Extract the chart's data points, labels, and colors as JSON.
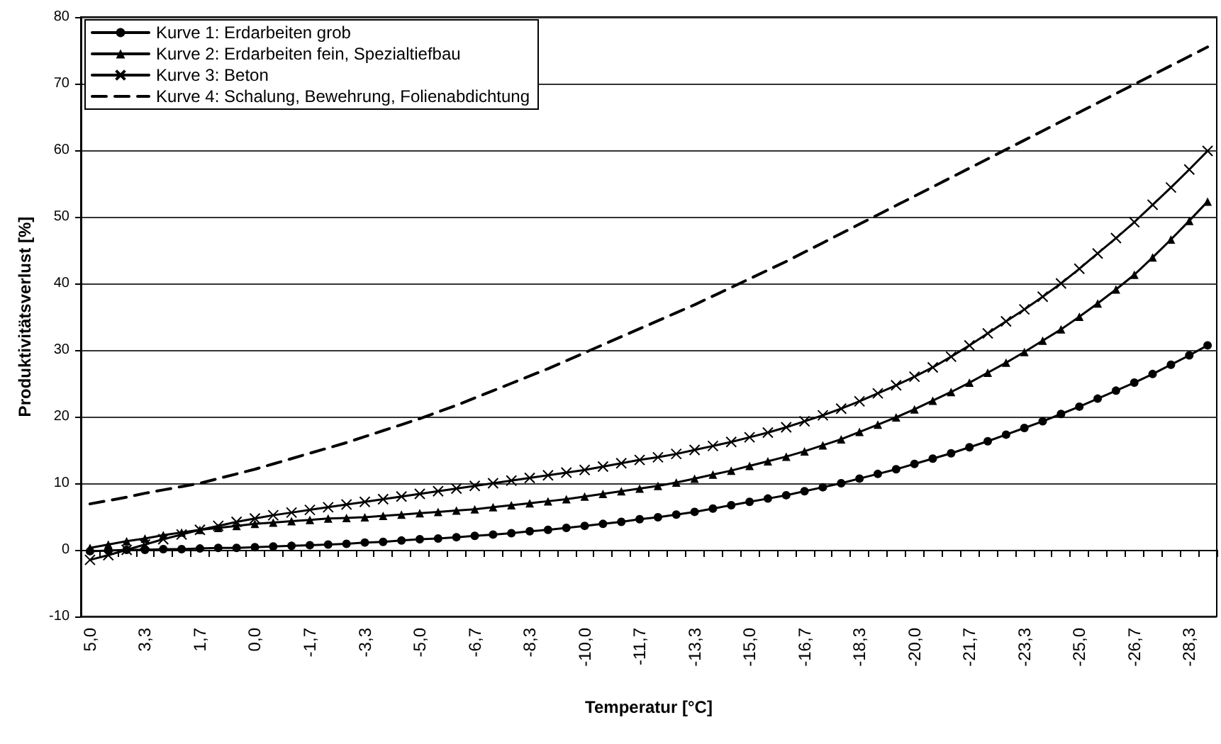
{
  "chart_data": {
    "type": "line",
    "xlabel": "Temperatur [°C]",
    "ylabel": "Produktivitätsverlust [%]",
    "categories": [
      "5,0",
      null,
      null,
      "3,3",
      null,
      null,
      "1,7",
      null,
      null,
      "0,0",
      null,
      null,
      "-1,7",
      null,
      null,
      "-3,3",
      null,
      null,
      "-5,0",
      null,
      null,
      "-6,7",
      null,
      null,
      "-8,3",
      null,
      null,
      "-10,0",
      null,
      null,
      "-11,7",
      null,
      null,
      "-13,3",
      null,
      null,
      "-15,0",
      null,
      null,
      "-16,7",
      null,
      null,
      "-18,3",
      null,
      null,
      "-20,0",
      null,
      null,
      "-21,7",
      null,
      null,
      "-23,3",
      null,
      null,
      "-25,0",
      null,
      null,
      "-26,7",
      null,
      null,
      "-28,3",
      null
    ],
    "series": [
      {
        "name": "Kurve 1: Erdarbeiten grob",
        "color": "#000000",
        "marker": "circle",
        "line_style": "solid",
        "values": [
          -0.2,
          -0.1,
          0,
          0,
          0.1,
          0.1,
          0.2,
          0.3,
          0.3,
          0.4,
          0.5,
          0.6,
          0.7,
          0.8,
          0.9,
          1.1,
          1.2,
          1.4,
          1.6,
          1.7,
          1.9,
          2.1,
          2.3,
          2.5,
          2.8,
          3.0,
          3.3,
          3.6,
          3.9,
          4.2,
          4.6,
          4.9,
          5.3,
          5.7,
          6.2,
          6.7,
          7.2,
          7.7,
          8.2,
          8.8,
          9.4,
          10.0,
          10.7,
          11.4,
          12.1,
          12.9,
          13.7,
          14.5,
          15.4,
          16.3,
          17.3,
          18.3,
          19.3,
          20.4,
          21.5,
          22.7,
          23.9,
          25.1,
          26.4,
          27.8,
          29.2,
          30.7
        ]
      },
      {
        "name": "Kurve 2: Erdarbeiten fein, Spezialtiefbau",
        "color": "#000000",
        "marker": "triangle",
        "line_style": "solid",
        "values": [
          0.3,
          0.8,
          1.3,
          1.7,
          2.2,
          2.6,
          3.0,
          3.3,
          3.6,
          3.9,
          4.1,
          4.3,
          4.5,
          4.7,
          4.8,
          4.9,
          5.1,
          5.3,
          5.5,
          5.7,
          5.9,
          6.1,
          6.4,
          6.7,
          7.0,
          7.3,
          7.6,
          8.0,
          8.4,
          8.8,
          9.2,
          9.6,
          10.1,
          10.7,
          11.3,
          11.9,
          12.6,
          13.3,
          14.0,
          14.8,
          15.7,
          16.6,
          17.7,
          18.8,
          19.9,
          21.1,
          22.4,
          23.7,
          25.1,
          26.6,
          28.1,
          29.7,
          31.4,
          33.1,
          35.0,
          37.0,
          39.1,
          41.3,
          43.9,
          46.6,
          49.4,
          52.3
        ]
      },
      {
        "name": "Kurve 3: Beton",
        "color": "#000000",
        "marker": "cross",
        "line_style": "solid",
        "values": [
          -1.5,
          -0.8,
          0,
          0.8,
          1.6,
          2.3,
          3.0,
          3.6,
          4.2,
          4.7,
          5.2,
          5.6,
          6.0,
          6.4,
          6.8,
          7.2,
          7.6,
          8.0,
          8.4,
          8.8,
          9.2,
          9.6,
          10.0,
          10.4,
          10.8,
          11.2,
          11.6,
          12.0,
          12.5,
          13.0,
          13.5,
          13.9,
          14.4,
          15.0,
          15.6,
          16.2,
          16.9,
          17.6,
          18.4,
          19.3,
          20.2,
          21.2,
          22.3,
          23.5,
          24.7,
          26.0,
          27.4,
          29.0,
          30.7,
          32.5,
          34.3,
          36.1,
          38.0,
          40.0,
          42.2,
          44.5,
          46.8,
          49.2,
          51.8,
          54.4,
          57.1,
          59.9
        ]
      },
      {
        "name": "Kurve 4: Schalung, Bewehrung, Folienabdichtung",
        "color": "#000000",
        "marker": "none",
        "line_style": "dashed",
        "values": [
          6.9,
          7.4,
          7.9,
          8.5,
          9.0,
          9.5,
          10.0,
          10.7,
          11.4,
          12.1,
          12.9,
          13.7,
          14.5,
          15.3,
          16.1,
          17.0,
          17.9,
          18.8,
          19.7,
          20.7,
          21.7,
          22.8,
          23.9,
          25.0,
          26.1,
          27.2,
          28.4,
          29.6,
          30.8,
          32.0,
          33.2,
          34.4,
          35.6,
          36.8,
          38.1,
          39.4,
          40.7,
          42.0,
          43.3,
          44.7,
          46.1,
          47.5,
          48.9,
          50.3,
          51.7,
          53.1,
          54.5,
          55.9,
          57.3,
          58.7,
          60.1,
          61.5,
          62.9,
          64.3,
          65.7,
          67.1,
          68.5,
          69.9,
          71.3,
          72.7,
          74.1,
          75.5
        ]
      }
    ],
    "ylim": [
      -10,
      80
    ],
    "yticks": [
      -10,
      0,
      10,
      20,
      30,
      40,
      50,
      60,
      70,
      80
    ],
    "grid": "y",
    "legend": "top left"
  }
}
